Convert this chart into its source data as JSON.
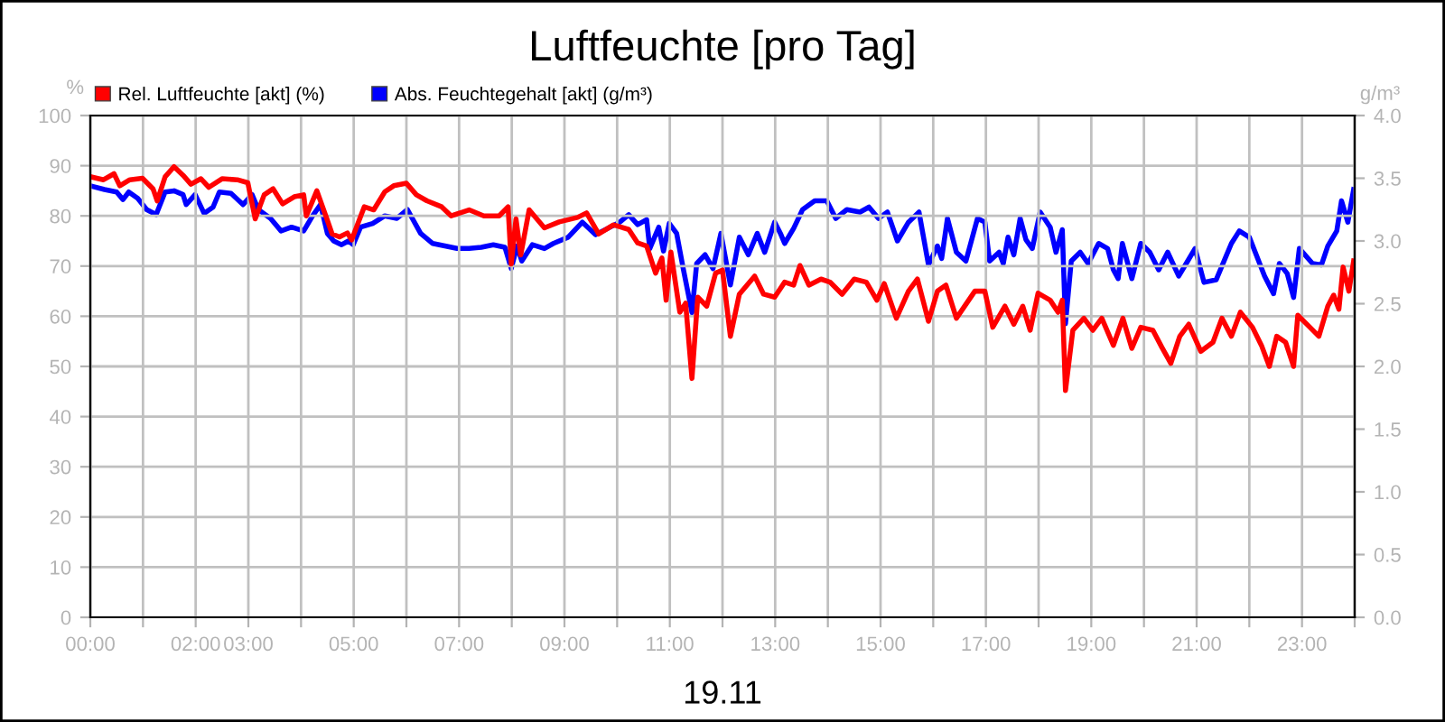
{
  "chart_data": {
    "type": "line",
    "title": "Luftfeuchte [pro Tag]",
    "xlabel": "19.11",
    "ylabel": "%",
    "y2label": "g/m³",
    "xlim": [
      0,
      24
    ],
    "xticks": [
      {
        "value": 0,
        "label": "00:00"
      },
      {
        "value": 1,
        "label": null
      },
      {
        "value": 2,
        "label": "02:00"
      },
      {
        "value": 3,
        "label": "03:00"
      },
      {
        "value": 4,
        "label": null
      },
      {
        "value": 5,
        "label": "05:00"
      },
      {
        "value": 6,
        "label": null
      },
      {
        "value": 7,
        "label": "07:00"
      },
      {
        "value": 8,
        "label": null
      },
      {
        "value": 9,
        "label": "09:00"
      },
      {
        "value": 10,
        "label": null
      },
      {
        "value": 11,
        "label": "11:00"
      },
      {
        "value": 12,
        "label": null
      },
      {
        "value": 13,
        "label": "13:00"
      },
      {
        "value": 14,
        "label": null
      },
      {
        "value": 15,
        "label": "15:00"
      },
      {
        "value": 16,
        "label": null
      },
      {
        "value": 17,
        "label": "17:00"
      },
      {
        "value": 18,
        "label": null
      },
      {
        "value": 19,
        "label": "19:00"
      },
      {
        "value": 20,
        "label": null
      },
      {
        "value": 21,
        "label": "21:00"
      },
      {
        "value": 22,
        "label": null
      },
      {
        "value": 23,
        "label": "23:00"
      },
      {
        "value": 24,
        "label": null
      }
    ],
    "ylim": [
      0,
      100
    ],
    "yticks": [
      0,
      10,
      20,
      30,
      40,
      50,
      60,
      70,
      80,
      90,
      100
    ],
    "y2lim": [
      0,
      4
    ],
    "y2ticks": [
      {
        "value": 0,
        "label": "0.0"
      },
      {
        "value": 0.5,
        "label": "0.5"
      },
      {
        "value": 1,
        "label": "1.0"
      },
      {
        "value": 1.5,
        "label": "1.5"
      },
      {
        "value": 2,
        "label": "2.0"
      },
      {
        "value": 2.5,
        "label": "2.5"
      },
      {
        "value": 3,
        "label": "3.0"
      },
      {
        "value": 3.5,
        "label": "3.5"
      },
      {
        "value": 4,
        "label": "4.0"
      }
    ],
    "grid": true,
    "legend": "top left",
    "marker": "none",
    "line_style": "solid",
    "series": [
      {
        "name": "Rel. Luftfeuchte [akt] (%)",
        "color": "#ff0000",
        "x": [
          0,
          0.25,
          0.45,
          0.56,
          0.75,
          0.99,
          1.19,
          1.27,
          1.42,
          1.59,
          1.76,
          1.91,
          2.1,
          2.25,
          2.5,
          2.79,
          2.99,
          3.13,
          3.3,
          3.47,
          3.65,
          3.87,
          4.05,
          4.1,
          4.3,
          4.49,
          4.59,
          4.73,
          4.88,
          4.96,
          5.2,
          5.38,
          5.59,
          5.76,
          6.0,
          6.19,
          6.39,
          6.67,
          6.85,
          7.19,
          7.47,
          7.76,
          7.93,
          7.99,
          8.08,
          8.17,
          8.33,
          8.62,
          8.9,
          9.25,
          9.42,
          9.65,
          9.93,
          10.22,
          10.39,
          10.56,
          10.73,
          10.85,
          10.93,
          11.02,
          11.19,
          11.3,
          11.42,
          11.53,
          11.7,
          11.87,
          12.0,
          12.15,
          12.32,
          12.61,
          12.78,
          12.99,
          13.18,
          13.35,
          13.47,
          13.64,
          13.87,
          14.04,
          14.27,
          14.5,
          14.73,
          14.93,
          15.07,
          15.3,
          15.53,
          15.7,
          15.91,
          16.08,
          16.24,
          16.44,
          16.79,
          16.98,
          17.13,
          17.36,
          17.53,
          17.7,
          17.84,
          17.99,
          18.22,
          18.37,
          18.45,
          18.51,
          18.65,
          18.86,
          19.03,
          19.2,
          19.42,
          19.6,
          19.77,
          19.94,
          20.17,
          20.34,
          20.51,
          20.68,
          20.85,
          21.08,
          21.31,
          21.48,
          21.66,
          21.83,
          22.06,
          22.23,
          22.38,
          22.52,
          22.69,
          22.84,
          22.92,
          23.15,
          23.32,
          23.49,
          23.6,
          23.7,
          23.78,
          23.89,
          23.98
        ],
        "values": [
          87.8,
          87.2,
          88.4,
          86,
          87.2,
          87.5,
          85.4,
          83,
          87.8,
          89.8,
          88.1,
          86.3,
          87.4,
          85.7,
          87.4,
          87.2,
          86.6,
          79.4,
          84.2,
          85.4,
          82.4,
          83.8,
          84.2,
          80,
          85,
          79.4,
          76.4,
          75.8,
          76.6,
          75.2,
          81.8,
          81.2,
          84.8,
          86,
          86.5,
          84.2,
          83,
          81.8,
          80,
          81.2,
          80,
          80,
          81.8,
          70.4,
          79.4,
          72.2,
          81.2,
          77.6,
          78.8,
          79.7,
          80.6,
          76.4,
          78.2,
          77.3,
          74.6,
          74,
          68.6,
          71.6,
          63.2,
          72.8,
          60.8,
          62.6,
          47.6,
          63.8,
          62,
          68.6,
          69.2,
          56,
          64.4,
          68,
          64.4,
          63.8,
          66.8,
          66.2,
          70.1,
          66.2,
          67.4,
          66.8,
          64.4,
          67.4,
          66.8,
          63.2,
          66.5,
          59.6,
          65,
          67.4,
          59,
          65,
          66.2,
          59.6,
          65,
          65,
          57.8,
          62,
          58.4,
          62,
          57.2,
          64.6,
          63.2,
          60.8,
          63.2,
          45.2,
          57.2,
          59.6,
          57.2,
          59.6,
          54.2,
          59.6,
          53.6,
          57.8,
          57.2,
          53.8,
          50.6,
          56,
          58.4,
          53,
          54.8,
          59.6,
          56,
          60.8,
          57.8,
          54.2,
          50,
          56,
          54.8,
          50,
          60.2,
          57.8,
          56,
          62,
          64.2,
          61.4,
          69.8,
          65,
          71
        ]
      },
      {
        "name": "Abs. Feuchtegehalt [akt] (g/m³)",
        "color": "#0000ff",
        "axis": "y2",
        "x": [
          0,
          0.27,
          0.5,
          0.62,
          0.73,
          0.9,
          1.07,
          1.25,
          1.42,
          1.59,
          1.76,
          1.82,
          1.99,
          2.16,
          2.33,
          2.45,
          2.67,
          2.9,
          3.07,
          3.19,
          3.42,
          3.62,
          3.82,
          4.05,
          4.22,
          4.37,
          4.5,
          4.62,
          4.77,
          4.9,
          4.99,
          5.13,
          5.36,
          5.59,
          5.82,
          6.02,
          6.27,
          6.5,
          6.73,
          6.96,
          7.19,
          7.42,
          7.65,
          7.87,
          7.99,
          8.1,
          8.19,
          8.39,
          8.62,
          8.79,
          9.07,
          9.34,
          9.59,
          9.82,
          10.05,
          10.22,
          10.39,
          10.56,
          10.62,
          10.79,
          10.88,
          10.99,
          11.13,
          11.25,
          11.42,
          11.51,
          11.67,
          11.82,
          11.97,
          12.15,
          12.32,
          12.49,
          12.66,
          12.8,
          12.99,
          13.1,
          13.18,
          13.35,
          13.52,
          13.75,
          13.98,
          14.15,
          14.36,
          14.61,
          14.78,
          14.96,
          15.13,
          15.32,
          15.53,
          15.73,
          15.91,
          16.08,
          16.16,
          16.27,
          16.44,
          16.62,
          16.84,
          16.98,
          17.07,
          17.25,
          17.33,
          17.42,
          17.53,
          17.65,
          17.76,
          17.88,
          18.03,
          18.22,
          18.33,
          18.45,
          18.51,
          18.62,
          18.79,
          18.94,
          19.14,
          19.31,
          19.42,
          19.51,
          19.59,
          19.77,
          19.94,
          20.11,
          20.28,
          20.45,
          20.66,
          20.83,
          20.97,
          21.14,
          21.37,
          21.66,
          21.81,
          22.0,
          22.29,
          22.46,
          22.57,
          22.72,
          22.84,
          22.95,
          23.2,
          23.37,
          23.49,
          23.66,
          23.75,
          23.87,
          23.98
        ],
        "values": [
          3.44,
          3.41,
          3.39,
          3.33,
          3.39,
          3.34,
          3.25,
          3.21,
          3.39,
          3.4,
          3.37,
          3.29,
          3.37,
          3.22,
          3.27,
          3.39,
          3.38,
          3.29,
          3.37,
          3.25,
          3.18,
          3.08,
          3.11,
          3.08,
          3.2,
          3.29,
          3.06,
          3,
          2.97,
          3,
          2.97,
          3.11,
          3.14,
          3.2,
          3.18,
          3.25,
          3.06,
          2.98,
          2.96,
          2.94,
          2.94,
          2.95,
          2.97,
          2.95,
          2.78,
          2.96,
          2.84,
          2.97,
          2.94,
          2.98,
          3.03,
          3.15,
          3.05,
          3.1,
          3.15,
          3.21,
          3.13,
          3.17,
          2.94,
          3.11,
          2.92,
          3.14,
          3.06,
          2.79,
          2.43,
          2.82,
          2.89,
          2.78,
          3.06,
          2.65,
          3.03,
          2.89,
          3.06,
          2.91,
          3.15,
          3.06,
          2.98,
          3.1,
          3.25,
          3.32,
          3.32,
          3.18,
          3.25,
          3.23,
          3.27,
          3.18,
          3.23,
          3,
          3.15,
          3.23,
          2.81,
          2.96,
          2.86,
          3.18,
          2.91,
          2.84,
          3.18,
          3.15,
          2.84,
          2.91,
          2.82,
          3.03,
          2.89,
          3.18,
          3.01,
          2.94,
          3.23,
          3.11,
          2.91,
          3.09,
          2.34,
          2.84,
          2.91,
          2.82,
          2.98,
          2.94,
          2.77,
          2.7,
          2.98,
          2.7,
          2.98,
          2.91,
          2.77,
          2.91,
          2.72,
          2.84,
          2.94,
          2.67,
          2.69,
          2.98,
          3.08,
          3.03,
          2.72,
          2.58,
          2.82,
          2.74,
          2.55,
          2.94,
          2.82,
          2.81,
          2.96,
          3.08,
          3.32,
          3.15,
          3.41
        ]
      }
    ]
  }
}
